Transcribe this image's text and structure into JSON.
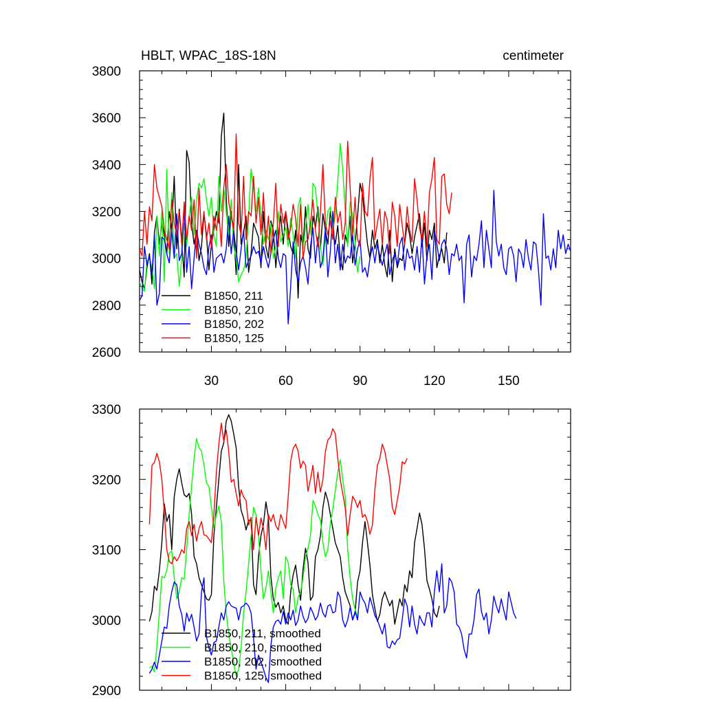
{
  "chart_data": [
    {
      "type": "line",
      "title": "HBLT, WPAC_18S-18N",
      "units": "centimeter",
      "xlim": [
        1,
        175
      ],
      "ylim": [
        2600,
        3800
      ],
      "xticks": [
        30,
        60,
        90,
        120,
        150
      ],
      "yticks": [
        2600,
        2800,
        3000,
        3200,
        3400,
        3600,
        3800
      ],
      "legend_position": "bottom-left",
      "series": [
        {
          "name": "B1850, 211",
          "color": "#000000",
          "x0": 1,
          "values": [
            2950,
            2900,
            2870,
            2960,
            3020,
            2890,
            3110,
            3180,
            3060,
            3150,
            3100,
            3020,
            3200,
            3120,
            3350,
            3040,
            3210,
            3080,
            2920,
            3460,
            3410,
            3150,
            3060,
            3120,
            2990,
            3050,
            3190,
            3100,
            2950,
            3060,
            3120,
            3200,
            3150,
            3520,
            3620,
            3260,
            3050,
            3200,
            3120,
            2930,
            3400,
            3060,
            3110,
            3180,
            2940,
            3020,
            3150,
            3120,
            3090,
            2960,
            3200,
            3050,
            3000,
            3160,
            3120,
            2960,
            3100,
            3180,
            3060,
            3200,
            3120,
            3050,
            3020,
            3120,
            2830,
            3100,
            3050,
            3220,
            3040,
            3000,
            3180,
            3130,
            3220,
            3040,
            3190,
            3120,
            3060,
            3200,
            3120,
            3060,
            3140,
            3000,
            2950,
            3100,
            3060,
            3180,
            2980,
            3060,
            3180,
            3320,
            3270,
            3160,
            3060,
            3000,
            3120,
            3040,
            3080,
            2980,
            3060,
            2970,
            2920,
            3120,
            2900,
            3040,
            2960,
            3000,
            2990,
            3060,
            3150,
            3100,
            3020,
            3090,
            3140,
            3190,
            3050,
            3150,
            2990,
            3120,
            3080,
            3150,
            2960,
            3010,
            3040,
            2980,
            3110
          ]
        },
        {
          "name": "B1850, 210",
          "color": "#00ff00",
          "x0": 1,
          "values": [
            2900,
            2870,
            2860,
            2990,
            3000,
            2960,
            2870,
            3180,
            3010,
            3200,
            2900,
            3380,
            3020,
            3280,
            3000,
            3020,
            2880,
            3000,
            3150,
            3050,
            3180,
            3260,
            3100,
            3250,
            3320,
            3300,
            3340,
            3250,
            3180,
            3260,
            3100,
            3050,
            3350,
            3200,
            3300,
            3200,
            3100,
            3250,
            3050,
            3000,
            2900,
            2930,
            2950,
            3000,
            3180,
            3380,
            3300,
            3200,
            3300,
            3180,
            3060,
            3120,
            3080,
            3150,
            3000,
            3050,
            3200,
            3070,
            3100,
            3130,
            3050,
            3170,
            3100,
            3000,
            3220,
            3260,
            3040,
            3130,
            3230,
            3100,
            3320,
            3300,
            3180,
            3050,
            2970,
            3100,
            3200,
            3220,
            3120,
            3180,
            3330,
            3490,
            3380,
            3200,
            3050,
            3240,
            3180,
            3070,
            2940,
            3010
          ]
        },
        {
          "name": "B1850, 202",
          "color": "#0000ff",
          "x0": 1,
          "values": [
            2820,
            2840,
            3050,
            2970,
            3010,
            2930,
            3100,
            2800,
            2850,
            3090,
            3080,
            3020,
            2980,
            3120,
            3000,
            3190,
            2990,
            3020,
            3220,
            2940,
            3050,
            2870,
            3000,
            3120,
            3060,
            3020,
            2960,
            2930,
            3050,
            3100,
            2940,
            3000,
            3010,
            3020,
            2980,
            3040,
            3180,
            3020,
            3120,
            3030,
            2950,
            3040,
            3120,
            2960,
            2990,
            3010,
            3050,
            3020,
            3030,
            2980,
            3050,
            3000,
            2960,
            3020,
            3080,
            3120,
            3000,
            2960,
            3020,
            3010,
            2720,
            2880,
            3070,
            2950,
            2900,
            2980,
            3010,
            2960,
            2890,
            3050,
            3130,
            2980,
            3090,
            2960,
            3000,
            3130,
            2920,
            3030,
            3200,
            2980,
            3060,
            2950,
            3060,
            2980,
            3010,
            3000,
            3100,
            2970,
            3040,
            3080,
            2940,
            2960,
            2920,
            3000,
            3050,
            2980,
            3060,
            3010,
            2970,
            3020,
            3060,
            2930,
            2990,
            3020,
            2970,
            3060,
            3090,
            2950,
            3040,
            3000,
            3010,
            2950,
            3050,
            2940,
            3100,
            2890,
            3010,
            3060,
            2910,
            3120,
            3060,
            2990,
            3060,
            3080,
            3040,
            2930,
            3020,
            3010,
            3060,
            2990,
            3010,
            2810,
            3060,
            3100,
            2920,
            3010,
            2990,
            3060,
            3160,
            2960,
            3120,
            3040,
            2960,
            3290,
            3070,
            3010,
            3060,
            2960,
            2930,
            3040,
            3050,
            3010,
            2900,
            3040,
            3020,
            2960,
            3080,
            3000,
            2950,
            3070,
            3060,
            2950,
            2800,
            3190,
            3000,
            3010,
            2950,
            3040,
            2960,
            3120,
            3040,
            3100,
            3020,
            3060,
            3030,
            2960,
            3160,
            3010,
            3000,
            3020,
            3040
          ]
        },
        {
          "name": "B1850, 125",
          "color": "#ff0000",
          "x0": 1,
          "values": [
            3040,
            3010,
            3200,
            3060,
            3220,
            3160,
            3400,
            3300,
            3260,
            3220,
            3120,
            3080,
            3040,
            3250,
            3150,
            3100,
            3200,
            3060,
            3240,
            3080,
            3180,
            3120,
            3250,
            3000,
            3300,
            3100,
            3200,
            3080,
            3150,
            3040,
            3180,
            3120,
            3200,
            3050,
            3300,
            3400,
            3240,
            3180,
            3120,
            3530,
            3150,
            3100,
            3350,
            3080,
            3200,
            3180,
            3350,
            3150,
            3260,
            3100,
            3280,
            3060,
            3180,
            3020,
            3150,
            3320,
            3050,
            3230,
            3150,
            3200,
            3080,
            3130,
            3230,
            3170,
            3050,
            3230,
            3000,
            3070,
            3080,
            3150,
            3250,
            3120,
            3050,
            3200,
            3400,
            3150,
            3100,
            3160,
            3080,
            3260,
            3150,
            3200,
            3080,
            3150,
            3500,
            3300,
            3100,
            3260,
            3080,
            3050,
            3320,
            3200,
            3180,
            3340,
            3430,
            3080,
            3150,
            3210,
            3060,
            3200,
            3160,
            3020,
            3240,
            3180,
            3050,
            3230,
            3140,
            3060,
            3220,
            3120,
            3070,
            3340,
            3250,
            3130,
            3080,
            3200,
            3050,
            3280,
            3340,
            3430,
            3080,
            3060,
            3350,
            3360,
            3230,
            3190,
            3280
          ]
        }
      ]
    },
    {
      "type": "line",
      "xlim": [
        1,
        175
      ],
      "ylim": [
        2900,
        3300
      ],
      "yticks": [
        2900,
        3000,
        3100,
        3200,
        3300
      ],
      "xticks": [
        30,
        60,
        90,
        120,
        150
      ],
      "legend_position": "bottom-left",
      "series": [
        {
          "name": "B1850, 211, smoothed",
          "color": "#000000",
          "x0": 5,
          "values": [
            2998,
            3012,
            3048,
            3042,
            3070,
            3110,
            3165,
            3140,
            3150,
            3100,
            3175,
            3200,
            3215,
            3195,
            3178,
            3175,
            3180,
            3150,
            3090,
            3080,
            3060,
            3050,
            3040,
            3030,
            3028,
            3036,
            3120,
            3160,
            3200,
            3240,
            3252,
            3283,
            3292,
            3283,
            3265,
            3245,
            3190,
            3156,
            3145,
            3128,
            3142,
            3142,
            3050,
            3036,
            3090,
            3120,
            3136,
            3168,
            3146,
            3062,
            3030,
            3018,
            3025,
            3010,
            3020,
            3000,
            2994,
            3040,
            3064,
            3078,
            3050,
            3028,
            3072,
            3102,
            3082,
            3028,
            3034,
            3090,
            3100,
            3120,
            3160,
            3182,
            3170,
            3150,
            3130,
            3110,
            3100,
            3090,
            3060,
            3040,
            3030,
            3020,
            3000,
            3010,
            3054,
            3070,
            3110,
            3140,
            3110,
            3078,
            3036,
            3016,
            2998,
            3008,
            3030,
            3040,
            3030,
            3020,
            3028,
            2994,
            3012,
            3030,
            3020,
            3050,
            3040,
            3070,
            3060,
            3110,
            3130,
            3152,
            3136,
            3102,
            3056,
            3044,
            3030,
            3010,
            3004,
            3020
          ]
        },
        {
          "name": "B1850, 210, smoothed",
          "color": "#00ff00",
          "x0": 5,
          "values": [
            2932,
            2934,
            2926,
            2962,
            3012,
            3062,
            3060,
            3070,
            3095,
            3098,
            3060,
            3030,
            3040,
            3060,
            3058,
            3100,
            3150,
            3190,
            3230,
            3258,
            3245,
            3240,
            3220,
            3195,
            3190,
            3160,
            3130,
            3150,
            3162,
            3140,
            3055,
            3010,
            2980,
            2960,
            2940,
            2920,
            2930,
            2960,
            3010,
            3040,
            3080,
            3120,
            3160,
            3150,
            3120,
            3070,
            3030,
            3045,
            3070,
            3040,
            3010,
            3045,
            3060,
            3070,
            3030,
            3090,
            3082,
            3050,
            3044,
            3010,
            3032,
            3040,
            3060,
            3090,
            3102,
            3120,
            3170,
            3162,
            3150,
            3142,
            3110,
            3090,
            3100,
            3138,
            3158,
            3184,
            3210,
            3228,
            3200,
            3175,
            3100,
            3060,
            3030,
            3015,
            3005
          ]
        },
        {
          "name": "B1850, 202, smoothed",
          "color": "#0000ff",
          "x0": 5,
          "values": [
            2924,
            2930,
            2940,
            2930,
            2950,
            2970,
            2990,
            2988,
            3020,
            3040,
            3054,
            3050,
            3020,
            3008,
            2984,
            3010,
            2998,
            3008,
            2990,
            2970,
            2980,
            3040,
            3060,
            2976,
            2960,
            2950,
            2968,
            2970,
            2990,
            3010,
            3000,
            3020,
            3026,
            3020,
            3018,
            3017,
            3000,
            3018,
            3020,
            3024,
            3020,
            3010,
            2974,
            2930,
            2950,
            2940,
            2930,
            2918,
            2911,
            2964,
            2990,
            2998,
            3000,
            2994,
            3012,
            2994,
            3010,
            3000,
            3014,
            2992,
            3000,
            3020,
            3005,
            2996,
            3002,
            3018,
            3010,
            3000,
            3006,
            3024,
            3010,
            3004,
            3020,
            3022,
            3010,
            3012,
            3040,
            3032,
            3000,
            2990,
            3000,
            3018,
            3000,
            3012,
            3000,
            3040,
            3030,
            3024,
            3010,
            3032,
            3020,
            3006,
            3000,
            2990,
            2980,
            2995,
            2962,
            2960,
            2970,
            2965,
            2972,
            2974,
            3000,
            3030,
            3020,
            2990,
            3020,
            2994,
            2980,
            3006,
            2998,
            2992,
            3010,
            3010,
            2990,
            3040,
            3070,
            3040,
            3080,
            3010,
            3020,
            3060,
            3054,
            3040,
            2994,
            2990,
            2980,
            2958,
            2946,
            2980,
            2980,
            3000,
            3036,
            3044,
            3012,
            3000,
            3010,
            2980,
            3000,
            3034,
            3020,
            3010,
            3030,
            3014,
            3000,
            3040,
            3025,
            3010,
            3002
          ]
        },
        {
          "name": "B1850, 125, smoothed",
          "color": "#ff0000",
          "x0": 5,
          "values": [
            3136,
            3220,
            3224,
            3237,
            3225,
            3200,
            3152,
            3100,
            3083,
            3080,
            3090,
            3084,
            3090,
            3100,
            3095,
            3130,
            3140,
            3120,
            3136,
            3112,
            3130,
            3140,
            3121,
            3120,
            3115,
            3110,
            3150,
            3210,
            3250,
            3280,
            3254,
            3270,
            3240,
            3196,
            3200,
            3180,
            3162,
            3185,
            3175,
            3170,
            3135,
            3146,
            3100,
            3146,
            3120,
            3145,
            3130,
            3100,
            3150,
            3140,
            3150,
            3134,
            3128,
            3150,
            3140,
            3130,
            3175,
            3226,
            3244,
            3250,
            3240,
            3216,
            3226,
            3220,
            3183,
            3200,
            3220,
            3180,
            3210,
            3182,
            3200,
            3240,
            3256,
            3260,
            3272,
            3265,
            3230,
            3200,
            3180,
            3160,
            3120,
            3150,
            3176,
            3170,
            3160,
            3170,
            3146,
            3150,
            3140,
            3122,
            3135,
            3186,
            3220,
            3230,
            3250,
            3240,
            3220,
            3200,
            3160,
            3150,
            3170,
            3190,
            3225,
            3222,
            3230
          ]
        }
      ]
    }
  ]
}
